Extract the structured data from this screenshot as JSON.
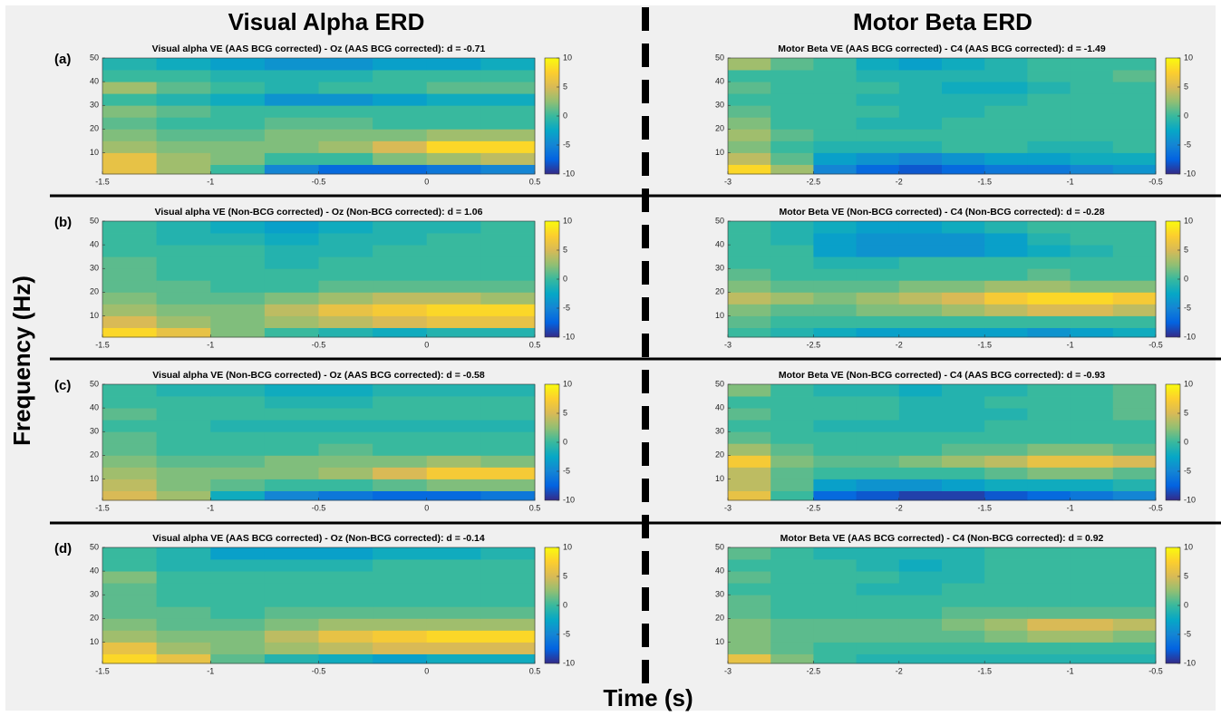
{
  "figure": {
    "left_title": "Visual Alpha ERD",
    "right_title": "Motor Beta ERD",
    "y_label": "Frequency (Hz)",
    "x_label": "Time (s)"
  },
  "chart_data": [
    {
      "type": "heatmap",
      "label": "(a)",
      "title": "Visual alpha VE (AAS BCG corrected) - Oz (AAS BCG corrected): d = -0.71",
      "xbins": [
        -1.5,
        -1.25,
        -1,
        -0.75,
        -0.5,
        -0.25,
        0,
        0.25,
        0.5
      ],
      "ybins": [
        1,
        5,
        10,
        15,
        20,
        25,
        30,
        35,
        40,
        45,
        50
      ],
      "values": [
        [
          6,
          3,
          0,
          -5,
          -7,
          -7,
          -6,
          -5
        ],
        [
          6,
          3,
          2,
          0,
          0,
          2,
          3,
          4
        ],
        [
          3,
          2,
          2,
          2,
          3,
          5,
          8,
          8
        ],
        [
          2,
          1,
          1,
          2,
          2,
          2,
          3,
          3
        ],
        [
          1,
          0,
          0,
          1,
          1,
          0,
          0,
          0
        ],
        [
          2,
          1,
          0,
          0,
          0,
          0,
          0,
          0
        ],
        [
          0,
          -1,
          -2,
          -4,
          -4,
          -3,
          -2,
          -2
        ],
        [
          3,
          1,
          0,
          -1,
          0,
          0,
          1,
          1
        ],
        [
          0,
          0,
          -1,
          -1,
          -1,
          0,
          0,
          0
        ],
        [
          -1,
          -2,
          -3,
          -4,
          -4,
          -3,
          -3,
          -2
        ]
      ],
      "xlim": [
        -1.5,
        0.5
      ],
      "xticks": [
        -1.5,
        -1,
        -0.5,
        0,
        0.5
      ],
      "ylim": [
        1,
        50
      ],
      "yticks": [
        10,
        20,
        30,
        40,
        50
      ],
      "zlim": [
        -10,
        10
      ],
      "zticks": [
        -10,
        -5,
        0,
        5,
        10
      ],
      "colormap": "parula"
    },
    {
      "type": "heatmap",
      "title": "Motor Beta VE (AAS BCG corrected) - C4 (AAS BCG corrected): d = -1.49",
      "xbins": [
        -3,
        -2.75,
        -2.5,
        -2.25,
        -2,
        -1.75,
        -1.5,
        -1.25,
        -1,
        -0.75,
        -0.5
      ],
      "ybins": [
        1,
        5,
        10,
        15,
        20,
        25,
        30,
        35,
        40,
        45,
        50
      ],
      "values": [
        [
          8,
          3,
          -5,
          -7,
          -8,
          -7,
          -6,
          -6,
          -5,
          -4
        ],
        [
          4,
          1,
          -3,
          -4,
          -5,
          -4,
          -3,
          -3,
          -2,
          -2
        ],
        [
          2,
          0,
          -1,
          -1,
          -1,
          0,
          0,
          -1,
          -1,
          0
        ],
        [
          3,
          1,
          0,
          0,
          0,
          0,
          0,
          0,
          0,
          0
        ],
        [
          2,
          0,
          0,
          -1,
          -1,
          0,
          0,
          0,
          0,
          0
        ],
        [
          1,
          0,
          0,
          0,
          -1,
          -1,
          0,
          0,
          0,
          0
        ],
        [
          0,
          0,
          0,
          -1,
          -1,
          -1,
          -1,
          0,
          0,
          0
        ],
        [
          1,
          0,
          0,
          0,
          -1,
          -2,
          -2,
          -1,
          0,
          0
        ],
        [
          0,
          0,
          0,
          -1,
          -1,
          -1,
          -1,
          0,
          0,
          1
        ],
        [
          3,
          1,
          0,
          -2,
          -3,
          -2,
          -1,
          0,
          0,
          0
        ]
      ],
      "xlim": [
        -3,
        -0.5
      ],
      "xticks": [
        -3,
        -2.5,
        -2,
        -1.5,
        -1,
        -0.5
      ],
      "ylim": [
        1,
        50
      ],
      "yticks": [
        10,
        20,
        30,
        40,
        50
      ],
      "zlim": [
        -10,
        10
      ],
      "zticks": [
        -10,
        -5,
        0,
        5,
        10
      ],
      "colormap": "parula"
    },
    {
      "type": "heatmap",
      "label": "(b)",
      "title": "Visual alpha VE (Non-BCG corrected) - Oz (Non-BCG corrected): d = 1.06",
      "xbins": [
        -1.5,
        -1.25,
        -1,
        -0.75,
        -0.5,
        -0.25,
        0,
        0.25,
        0.5
      ],
      "ybins": [
        1,
        5,
        10,
        15,
        20,
        25,
        30,
        35,
        40,
        45,
        50
      ],
      "values": [
        [
          8,
          6,
          2,
          0,
          -1,
          -2,
          -1,
          -1
        ],
        [
          5,
          3,
          2,
          3,
          4,
          5,
          6,
          6
        ],
        [
          3,
          2,
          2,
          4,
          6,
          7,
          8,
          8
        ],
        [
          2,
          1,
          1,
          2,
          3,
          4,
          4,
          3
        ],
        [
          1,
          1,
          0,
          0,
          1,
          1,
          1,
          1
        ],
        [
          1,
          0,
          0,
          0,
          0,
          0,
          0,
          0
        ],
        [
          1,
          0,
          0,
          -1,
          0,
          0,
          0,
          0
        ],
        [
          0,
          0,
          0,
          -1,
          -1,
          0,
          0,
          0
        ],
        [
          0,
          -1,
          -1,
          -2,
          -1,
          -1,
          0,
          0
        ],
        [
          0,
          -1,
          -2,
          -3,
          -2,
          -1,
          -1,
          0
        ]
      ],
      "xlim": [
        -1.5,
        0.5
      ],
      "xticks": [
        -1.5,
        -1,
        -0.5,
        0,
        0.5
      ],
      "ylim": [
        1,
        50
      ],
      "yticks": [
        10,
        20,
        30,
        40,
        50
      ],
      "zlim": [
        -10,
        10
      ],
      "zticks": [
        -10,
        -5,
        0,
        5,
        10
      ],
      "colormap": "parula"
    },
    {
      "type": "heatmap",
      "title": "Motor Beta VE (Non-BCG corrected) - C4 (Non-BCG corrected): d = -0.28",
      "xbins": [
        -3,
        -2.75,
        -2.5,
        -2.25,
        -2,
        -1.75,
        -1.5,
        -1.25,
        -1,
        -0.75,
        -0.5
      ],
      "ybins": [
        1,
        5,
        10,
        15,
        20,
        25,
        30,
        35,
        40,
        45,
        50
      ],
      "values": [
        [
          0,
          -1,
          -2,
          -3,
          -3,
          -3,
          -3,
          -4,
          -3,
          -2
        ],
        [
          1,
          0,
          0,
          0,
          0,
          0,
          0,
          0,
          0,
          0
        ],
        [
          2,
          1,
          1,
          2,
          2,
          3,
          4,
          5,
          5,
          4
        ],
        [
          4,
          3,
          2,
          3,
          4,
          5,
          7,
          8,
          8,
          7
        ],
        [
          2,
          1,
          1,
          1,
          2,
          2,
          3,
          3,
          2,
          2
        ],
        [
          1,
          0,
          0,
          0,
          0,
          0,
          0,
          1,
          0,
          0
        ],
        [
          0,
          0,
          -1,
          -1,
          0,
          0,
          0,
          0,
          0,
          0
        ],
        [
          0,
          0,
          -3,
          -4,
          -4,
          -4,
          -3,
          -2,
          -1,
          0
        ],
        [
          0,
          -1,
          -3,
          -4,
          -4,
          -4,
          -3,
          -1,
          0,
          0
        ],
        [
          0,
          -1,
          -2,
          -3,
          -3,
          -2,
          -1,
          0,
          0,
          0
        ]
      ],
      "xlim": [
        -3,
        -0.5
      ],
      "xticks": [
        -3,
        -2.5,
        -2,
        -1.5,
        -1,
        -0.5
      ],
      "ylim": [
        1,
        50
      ],
      "yticks": [
        10,
        20,
        30,
        40,
        50
      ],
      "zlim": [
        -10,
        10
      ],
      "zticks": [
        -10,
        -5,
        0,
        5,
        10
      ],
      "colormap": "parula"
    },
    {
      "type": "heatmap",
      "label": "(c)",
      "title": "Visual alpha VE (Non-BCG corrected) - Oz (AAS BCG corrected): d = -0.58",
      "xbins": [
        -1.5,
        -1.25,
        -1,
        -0.75,
        -0.5,
        -0.25,
        0,
        0.25,
        0.5
      ],
      "ybins": [
        1,
        5,
        10,
        15,
        20,
        25,
        30,
        35,
        40,
        45,
        50
      ],
      "values": [
        [
          5,
          3,
          -2,
          -5,
          -6,
          -7,
          -7,
          -6
        ],
        [
          4,
          2,
          1,
          0,
          0,
          1,
          2,
          2
        ],
        [
          3,
          2,
          2,
          2,
          3,
          5,
          7,
          7
        ],
        [
          2,
          1,
          1,
          2,
          2,
          2,
          3,
          2
        ],
        [
          1,
          0,
          0,
          0,
          1,
          0,
          0,
          0
        ],
        [
          1,
          0,
          0,
          0,
          0,
          0,
          0,
          0
        ],
        [
          0,
          0,
          -1,
          -1,
          -1,
          -1,
          -1,
          -1
        ],
        [
          1,
          0,
          0,
          0,
          0,
          0,
          0,
          0
        ],
        [
          0,
          0,
          0,
          -1,
          -1,
          0,
          0,
          0
        ],
        [
          0,
          -1,
          -1,
          -2,
          -2,
          -1,
          -1,
          -1
        ]
      ],
      "xlim": [
        -1.5,
        0.5
      ],
      "xticks": [
        -1.5,
        -1,
        -0.5,
        0,
        0.5
      ],
      "ylim": [
        1,
        50
      ],
      "yticks": [
        10,
        20,
        30,
        40,
        50
      ],
      "zlim": [
        -10,
        10
      ],
      "zticks": [
        -10,
        -5,
        0,
        5,
        10
      ],
      "colormap": "parula"
    },
    {
      "type": "heatmap",
      "title": "Motor Beta VE (Non-BCG corrected) - C4 (AAS BCG corrected): d = -0.93",
      "xbins": [
        -3,
        -2.75,
        -2.5,
        -2.25,
        -2,
        -1.75,
        -1.5,
        -1.25,
        -1,
        -0.75,
        -0.5
      ],
      "ybins": [
        1,
        5,
        10,
        15,
        20,
        25,
        30,
        35,
        40,
        45,
        50
      ],
      "values": [
        [
          6,
          0,
          -7,
          -8,
          -9,
          -9,
          -8,
          -7,
          -6,
          -5
        ],
        [
          4,
          1,
          -3,
          -4,
          -4,
          -3,
          -2,
          -2,
          -2,
          -1
        ],
        [
          4,
          1,
          0,
          0,
          0,
          0,
          1,
          2,
          2,
          1
        ],
        [
          7,
          2,
          1,
          1,
          2,
          3,
          4,
          6,
          6,
          5
        ],
        [
          3,
          1,
          0,
          0,
          0,
          1,
          1,
          2,
          2,
          1
        ],
        [
          1,
          0,
          0,
          0,
          0,
          0,
          0,
          0,
          0,
          0
        ],
        [
          0,
          0,
          -1,
          -1,
          -1,
          -1,
          0,
          0,
          0,
          0
        ],
        [
          1,
          0,
          0,
          0,
          -1,
          -1,
          -1,
          0,
          0,
          1
        ],
        [
          0,
          0,
          0,
          0,
          -1,
          -1,
          0,
          0,
          0,
          1
        ],
        [
          2,
          0,
          -1,
          -1,
          -2,
          -1,
          -1,
          0,
          0,
          1
        ]
      ],
      "xlim": [
        -3,
        -0.5
      ],
      "xticks": [
        -3,
        -2.5,
        -2,
        -1.5,
        -1,
        -0.5
      ],
      "ylim": [
        1,
        50
      ],
      "yticks": [
        10,
        20,
        30,
        40,
        50
      ],
      "zlim": [
        -10,
        10
      ],
      "zticks": [
        -10,
        -5,
        0,
        5,
        10
      ],
      "colormap": "parula"
    },
    {
      "type": "heatmap",
      "label": "(d)",
      "title": "Visual alpha VE (AAS BCG corrected) - Oz (Non-BCG corrected): d = -0.14",
      "xbins": [
        -1.5,
        -1.25,
        -1,
        -0.75,
        -0.5,
        -0.25,
        0,
        0.25,
        0.5
      ],
      "ybins": [
        1,
        5,
        10,
        15,
        20,
        25,
        30,
        35,
        40,
        45,
        50
      ],
      "values": [
        [
          8,
          6,
          1,
          -1,
          -2,
          -3,
          -2,
          -2
        ],
        [
          6,
          3,
          2,
          3,
          4,
          5,
          5,
          5
        ],
        [
          3,
          2,
          2,
          4,
          6,
          7,
          8,
          8
        ],
        [
          2,
          1,
          1,
          2,
          3,
          3,
          3,
          3
        ],
        [
          1,
          1,
          0,
          1,
          1,
          1,
          1,
          1
        ],
        [
          1,
          0,
          0,
          0,
          0,
          0,
          0,
          0
        ],
        [
          1,
          0,
          0,
          0,
          0,
          0,
          0,
          0
        ],
        [
          2,
          0,
          0,
          0,
          0,
          0,
          0,
          0
        ],
        [
          0,
          -1,
          -1,
          -1,
          -1,
          0,
          0,
          0
        ],
        [
          0,
          -1,
          -3,
          -3,
          -3,
          -2,
          -2,
          -1
        ]
      ],
      "xlim": [
        -1.5,
        0.5
      ],
      "xticks": [
        -1.5,
        -1,
        -0.5,
        0,
        0.5
      ],
      "ylim": [
        1,
        50
      ],
      "yticks": [
        10,
        20,
        30,
        40,
        50
      ],
      "zlim": [
        -10,
        10
      ],
      "zticks": [
        -10,
        -5,
        0,
        5,
        10
      ],
      "colormap": "parula"
    },
    {
      "type": "heatmap",
      "title": "Motor Beta VE (AAS BCG corrected) - C4 (Non-BCG corrected): d = 0.92",
      "xbins": [
        -3,
        -2.75,
        -2.5,
        -2.25,
        -2,
        -1.75,
        -1.5,
        -1.25,
        -1,
        -0.75,
        -0.5
      ],
      "ybins": [
        1,
        5,
        10,
        15,
        20,
        25,
        30,
        35,
        40,
        45,
        50
      ],
      "values": [
        [
          6,
          2,
          0,
          -1,
          -1,
          -1,
          -1,
          -1,
          -1,
          -1
        ],
        [
          2,
          1,
          0,
          0,
          0,
          0,
          0,
          0,
          0,
          0
        ],
        [
          2,
          1,
          1,
          1,
          1,
          1,
          2,
          3,
          3,
          2
        ],
        [
          2,
          1,
          1,
          1,
          1,
          2,
          3,
          5,
          5,
          4
        ],
        [
          1,
          0,
          0,
          0,
          0,
          1,
          1,
          1,
          1,
          1
        ],
        [
          1,
          0,
          0,
          0,
          0,
          0,
          0,
          0,
          0,
          0
        ],
        [
          0,
          0,
          0,
          -1,
          -1,
          0,
          0,
          0,
          0,
          0
        ],
        [
          1,
          0,
          0,
          0,
          -1,
          -1,
          0,
          0,
          0,
          0
        ],
        [
          0,
          0,
          0,
          -1,
          -2,
          -1,
          0,
          0,
          0,
          0
        ],
        [
          1,
          0,
          -1,
          -1,
          -1,
          -1,
          0,
          0,
          0,
          0
        ]
      ],
      "xlim": [
        -3,
        -0.5
      ],
      "xticks": [
        -3,
        -2.5,
        -2,
        -1.5,
        -1,
        -0.5
      ],
      "ylim": [
        1,
        50
      ],
      "yticks": [
        10,
        20,
        30,
        40,
        50
      ],
      "zlim": [
        -10,
        10
      ],
      "zticks": [
        -10,
        -5,
        0,
        5,
        10
      ],
      "colormap": "parula"
    }
  ]
}
